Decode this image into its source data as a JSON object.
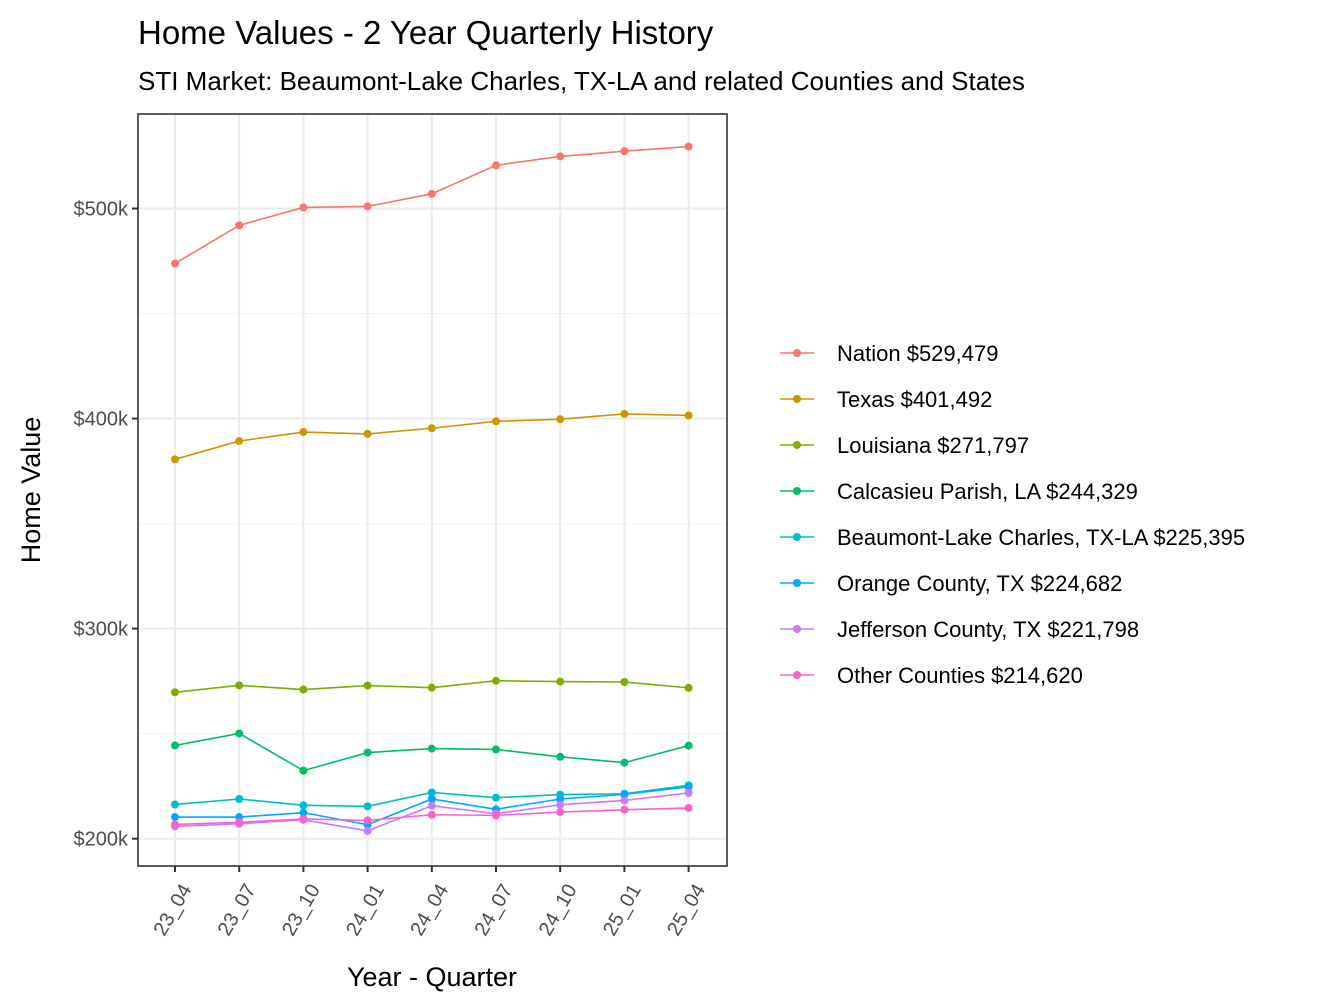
{
  "chart_data": {
    "type": "line",
    "title": "Home Values - 2 Year Quarterly History",
    "subtitle": "STI Market: Beaumont-Lake Charles, TX-LA and related Counties and States",
    "xlabel": "Year - Quarter",
    "ylabel": "Home Value",
    "categories": [
      "23_04",
      "23_07",
      "23_10",
      "24_01",
      "24_04",
      "24_07",
      "24_10",
      "25_01",
      "25_04"
    ],
    "ylim": [
      187000,
      545000
    ],
    "yticks": [
      200000,
      300000,
      400000,
      500000
    ],
    "ytick_labels": [
      "$200k",
      "$300k",
      "$400k",
      "$500k"
    ],
    "grid": true,
    "legend_position": "right",
    "series": [
      {
        "name": "Nation",
        "legend": "Nation $529,479",
        "color": "#F8766D",
        "values": [
          473800,
          492000,
          500500,
          501000,
          507000,
          520600,
          524800,
          527300,
          529479
        ]
      },
      {
        "name": "Texas",
        "legend": "Texas $401,492",
        "color": "#CD9600",
        "values": [
          380600,
          389300,
          393600,
          392700,
          395400,
          398700,
          399700,
          402200,
          401492
        ]
      },
      {
        "name": "Louisiana",
        "legend": "Louisiana $271,797",
        "color": "#7CAE00",
        "values": [
          269700,
          273000,
          271000,
          272900,
          271900,
          275200,
          274800,
          274600,
          271797
        ]
      },
      {
        "name": "Calcasieu Parish, LA",
        "legend": "Calcasieu Parish, LA $244,329",
        "color": "#00BE67",
        "values": [
          244400,
          250100,
          232400,
          241000,
          242900,
          242500,
          239000,
          236200,
          244329
        ]
      },
      {
        "name": "Beaumont-Lake Charles, TX-LA",
        "legend": "Beaumont-Lake Charles, TX-LA $225,395",
        "color": "#00BFC4",
        "values": [
          216300,
          218900,
          215900,
          215400,
          222000,
          219500,
          221000,
          221400,
          225395
        ]
      },
      {
        "name": "Orange County, TX",
        "legend": "Orange County, TX $224,682",
        "color": "#00A9FF",
        "values": [
          210300,
          210300,
          212400,
          206700,
          218900,
          214000,
          218900,
          221100,
          224682
        ]
      },
      {
        "name": "Jefferson County, TX",
        "legend": "Jefferson County, TX $221,798",
        "color": "#C77CFF",
        "values": [
          205900,
          207100,
          209000,
          203700,
          215700,
          211900,
          216200,
          218200,
          221798
        ]
      },
      {
        "name": "Other Counties",
        "legend": "Other Counties $214,620",
        "color": "#FF61CC",
        "values": [
          206800,
          207800,
          209400,
          208700,
          211400,
          211100,
          212700,
          213800,
          214620
        ]
      }
    ]
  }
}
